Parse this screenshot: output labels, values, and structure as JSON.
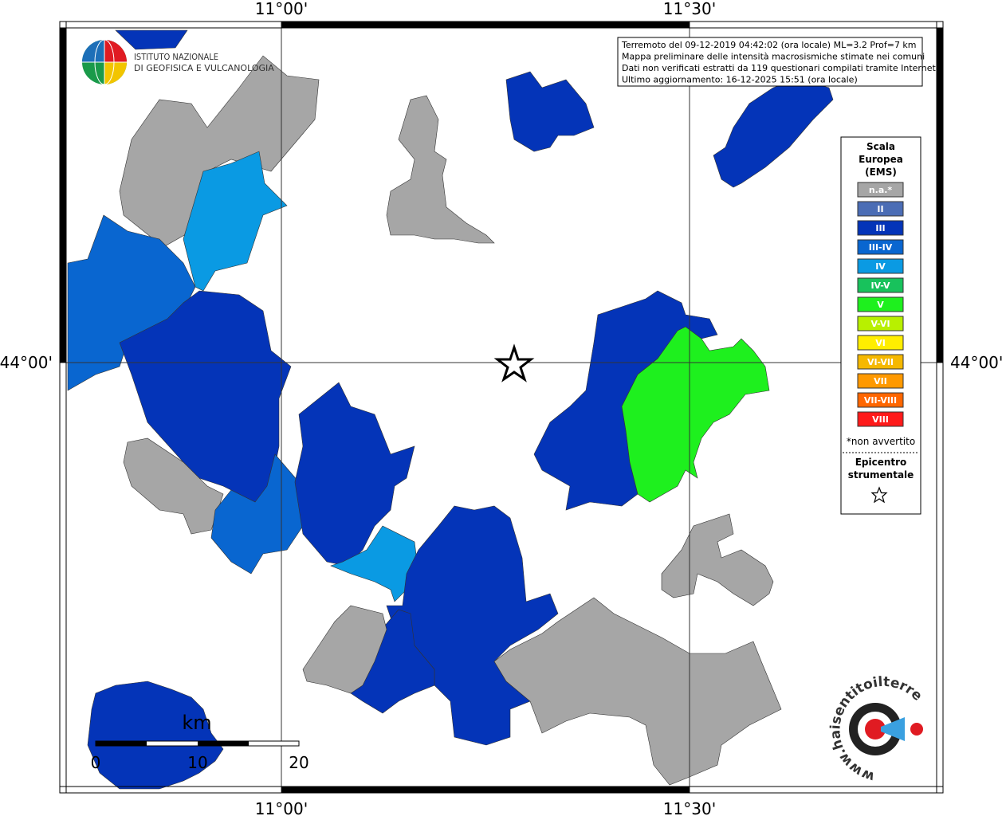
{
  "map": {
    "graticule": {
      "lon_labels": [
        "11°00'",
        "11°30'"
      ],
      "lat_labels": [
        "44°00'"
      ]
    },
    "info": [
      "Terremoto del 09-12-2019 04:42:02 (ora locale) ML=3.2 Prof=7 km",
      "Mappa preliminare delle intensità macrosismiche stimate nei comuni",
      "Dati non verificati estratti da 119 questionari compilati tramite Internet.",
      "Ultimo aggiornamento: 16-12-2025 15:51 (ora locale)"
    ],
    "legend": {
      "title": [
        "Scala",
        "Europea",
        "(EMS)"
      ],
      "items": [
        {
          "label": "n.a.*",
          "color": "#a6a6a6"
        },
        {
          "label": "II",
          "color": "#4b6db5"
        },
        {
          "label": "III",
          "color": "#0434b8"
        },
        {
          "label": "III-IV",
          "color": "#0966d0"
        },
        {
          "label": "IV",
          "color": "#0a9ae3"
        },
        {
          "label": "IV-V",
          "color": "#18c25c"
        },
        {
          "label": "V",
          "color": "#1ef01e"
        },
        {
          "label": "V-VI",
          "color": "#b8f000"
        },
        {
          "label": "VI",
          "color": "#ffee00"
        },
        {
          "label": "VI-VII",
          "color": "#f5b800"
        },
        {
          "label": "VII",
          "color": "#ff9900"
        },
        {
          "label": "VII-VIII",
          "color": "#ff6600"
        },
        {
          "label": "VIII",
          "color": "#ff1a1a"
        }
      ],
      "note": "*non avvertito",
      "epicenter_title": [
        "Epicentro",
        "strumentale"
      ]
    },
    "logo": [
      "ISTITUTO NAZIONALE",
      "DI GEOFISICA E VULCANOLOGIA"
    ],
    "scale_bar": {
      "unit": "km",
      "labels": [
        "0",
        "10",
        "20"
      ]
    },
    "site_logo": "www.haisentitoilterremoto.it"
  }
}
